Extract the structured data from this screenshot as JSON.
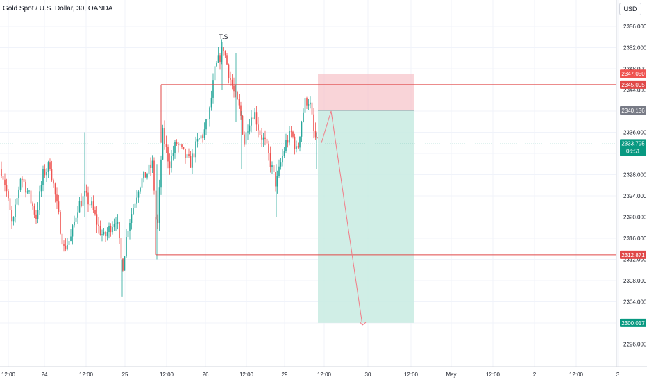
{
  "header": {
    "symbol_title": "Gold Spot / U.S. Dollar, 30, OANDA",
    "currency": "USD"
  },
  "annotation": {
    "pattern_label": "T.S"
  },
  "colors": {
    "up": "#26a69a",
    "down": "#ef5350",
    "stop_zone": "#f7c5cb",
    "target_zone": "#c8ebe2",
    "level_line": "#e04848",
    "last_price": "#089981",
    "entry_price": "#787b86",
    "projection": "#f27b86"
  },
  "chart_data": {
    "type": "candlestick",
    "title": "Gold Spot / U.S. Dollar, 30, OANDA",
    "ylim": [
      2294,
      2358
    ],
    "y_ticks": [
      "2356.000",
      "2352.000",
      "2348.000",
      "2344.000",
      "2340.000",
      "2336.000",
      "2332.000",
      "2328.000",
      "2324.000",
      "2320.000",
      "2316.000",
      "2312.000",
      "2308.000",
      "2304.000",
      "2300.000",
      "2296.000"
    ],
    "x_ticks": [
      "12:00",
      "24",
      "12:00",
      "25",
      "12:00",
      "26",
      "12:00",
      "29",
      "12:00",
      "30",
      "12:00",
      "May",
      "12:00",
      "2",
      "12:00",
      "3"
    ],
    "price_labels": [
      {
        "label": "2347.050",
        "kind": "stop"
      },
      {
        "label": "2345.005",
        "kind": "level"
      },
      {
        "label": "2340.136",
        "kind": "entry"
      },
      {
        "label": "2333.795",
        "kind": "last",
        "countdown": "06:51"
      },
      {
        "label": "2312.871",
        "kind": "level"
      },
      {
        "label": "2300.017",
        "kind": "target"
      }
    ],
    "levels": [
      2345.005,
      2312.871
    ],
    "position": {
      "entry": 2340.136,
      "stop": 2347.05,
      "target": 2300.017
    },
    "last_price": 2333.795,
    "annotation": "T.S"
  }
}
